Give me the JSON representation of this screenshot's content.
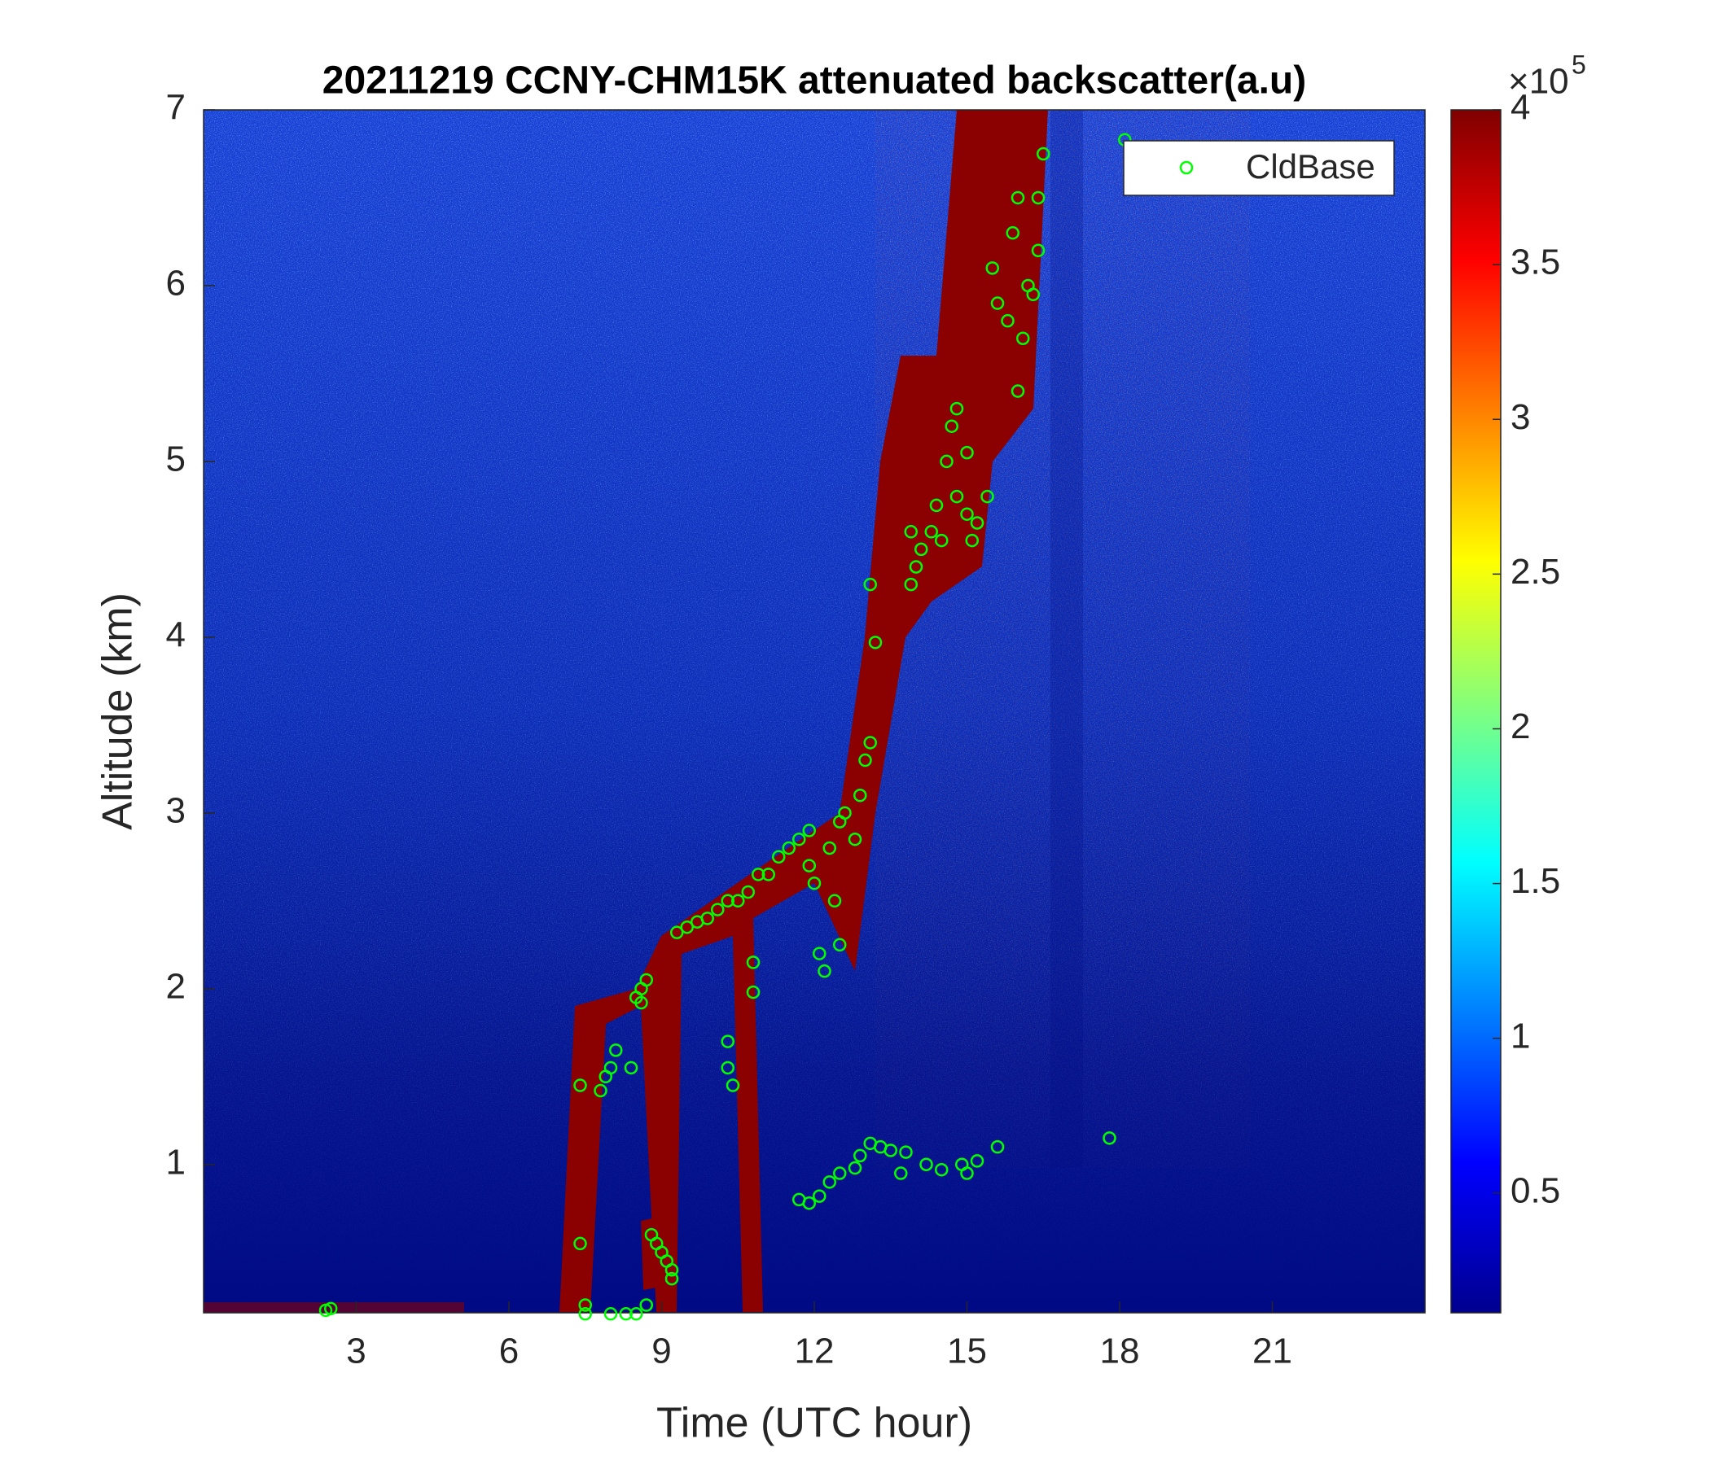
{
  "chart_data": {
    "type": "scatter",
    "title": "20211219 CCNY-CHM15K attenuated backscatter(a.u)",
    "x_label": "Time (UTC hour)",
    "y_label": "Altitude (km)",
    "xlim": [
      0,
      24
    ],
    "xticks": [
      3,
      6,
      9,
      12,
      15,
      18,
      21
    ],
    "ylim": [
      0.156,
      7
    ],
    "yticks": [
      1,
      2,
      3,
      4,
      5,
      6,
      7
    ],
    "colorbar": {
      "colormap": "jet",
      "clim": [
        0.113,
        4
      ],
      "ticks": [
        0.5,
        1,
        1.5,
        2,
        2.5,
        3,
        3.5,
        4
      ],
      "multiplier_base": "×10",
      "multiplier_exponent": "5"
    },
    "legend": "upper right",
    "series": [
      {
        "name": "CldBase",
        "color": "#00ff00",
        "x": [
          2.4,
          2.5,
          7.4,
          7.4,
          7.5,
          7.5,
          7.8,
          7.9,
          8.0,
          8.1,
          8.0,
          8.3,
          8.4,
          8.5,
          8.6,
          8.6,
          8.7,
          8.5,
          8.7,
          8.8,
          8.9,
          9.0,
          9.1,
          9.2,
          9.2,
          9.3,
          9.5,
          9.7,
          9.9,
          10.1,
          10.3,
          10.3,
          10.3,
          10.4,
          10.5,
          10.7,
          10.8,
          10.8,
          10.9,
          11.1,
          11.3,
          11.5,
          11.7,
          11.9,
          11.9,
          12.0,
          12.1,
          12.2,
          12.3,
          12.4,
          12.5,
          12.5,
          12.6,
          12.8,
          12.9,
          13.0,
          13.1,
          13.1,
          13.2,
          11.7,
          11.9,
          12.1,
          12.3,
          12.5,
          12.8,
          12.9,
          13.1,
          13.3,
          13.5,
          13.8,
          13.7,
          14.2,
          14.5,
          14.9,
          15.0,
          15.2,
          15.6,
          17.8,
          13.9,
          13.9,
          14.0,
          14.1,
          14.3,
          14.4,
          14.5,
          14.6,
          14.7,
          14.8,
          14.8,
          15.0,
          15.0,
          15.1,
          15.2,
          15.4,
          15.5,
          15.6,
          15.8,
          15.9,
          16.0,
          16.0,
          16.1,
          16.2,
          16.3,
          16.4,
          16.4,
          16.5,
          18.1
        ],
        "y": [
          0.17,
          0.18,
          1.45,
          0.55,
          0.2,
          0.15,
          1.42,
          1.5,
          1.55,
          1.65,
          0.15,
          0.15,
          1.55,
          1.95,
          1.92,
          2.0,
          2.05,
          0.15,
          0.2,
          0.6,
          0.55,
          0.5,
          0.45,
          0.4,
          0.35,
          2.32,
          2.35,
          2.38,
          2.4,
          2.45,
          2.5,
          1.7,
          1.55,
          1.45,
          2.5,
          2.55,
          2.15,
          1.98,
          2.65,
          2.65,
          2.75,
          2.8,
          2.85,
          2.9,
          2.7,
          2.6,
          2.2,
          2.1,
          2.8,
          2.5,
          2.95,
          2.25,
          3.0,
          2.85,
          3.1,
          3.3,
          3.4,
          4.3,
          3.97,
          0.8,
          0.78,
          0.82,
          0.9,
          0.95,
          0.98,
          1.05,
          1.12,
          1.1,
          1.08,
          1.07,
          0.95,
          1.0,
          0.97,
          1.0,
          0.95,
          1.02,
          1.1,
          1.15,
          4.3,
          4.6,
          4.4,
          4.5,
          4.6,
          4.75,
          4.55,
          5.0,
          5.2,
          5.3,
          4.8,
          4.7,
          5.05,
          4.55,
          4.65,
          4.8,
          6.1,
          5.9,
          5.8,
          6.3,
          5.4,
          6.5,
          5.7,
          6.0,
          5.95,
          6.2,
          6.5,
          6.75,
          6.83
        ]
      }
    ]
  }
}
